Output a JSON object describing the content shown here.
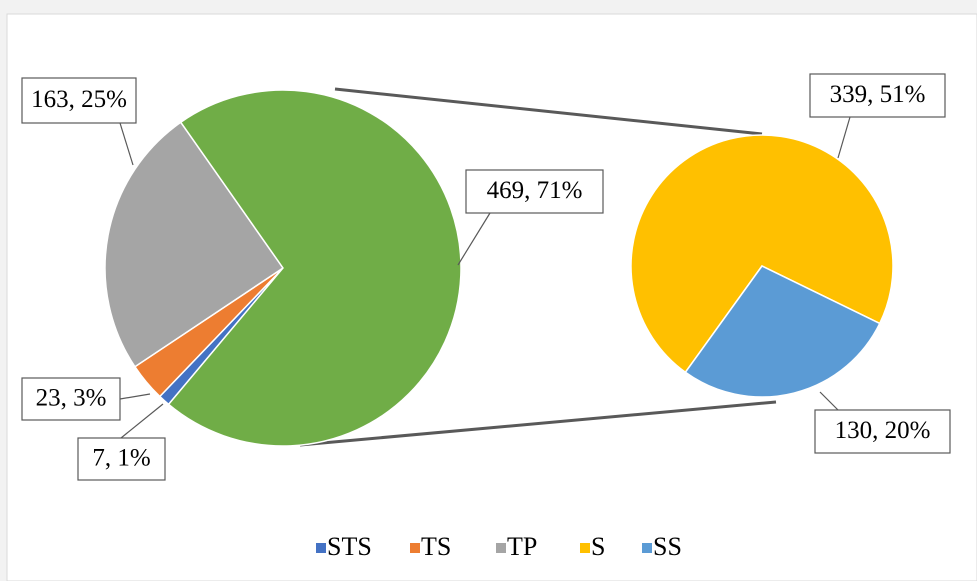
{
  "chart_data": {
    "type": "pie-of-pie",
    "primary": {
      "categories": [
        "STS",
        "TS",
        "TP"
      ],
      "values": [
        7,
        23,
        163
      ],
      "value_labels": [
        "7, 1%",
        "23, 3%",
        "163, 25%"
      ],
      "colors": [
        "#4472c4",
        "#ed7d31",
        "#a5a5a5"
      ]
    },
    "other": {
      "value": 469,
      "value_label": "469, 71%",
      "color": "#70ad47"
    },
    "secondary": {
      "categories": [
        "S",
        "SS"
      ],
      "values": [
        339,
        130
      ],
      "value_labels": [
        "339, 51%",
        "130, 20%"
      ],
      "colors": [
        "#ffc000",
        "#5b9bd5"
      ]
    },
    "legend": "bottom"
  }
}
